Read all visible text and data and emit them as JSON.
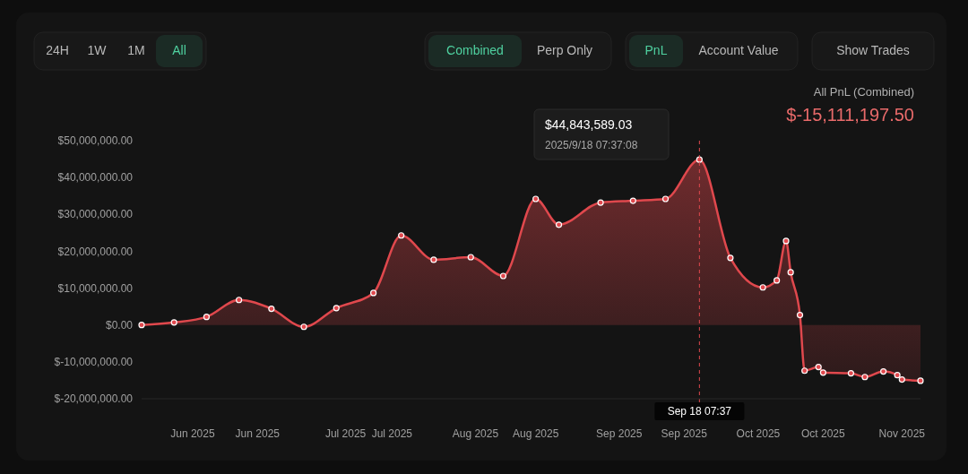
{
  "chart_data": {
    "type": "area",
    "title": "All PnL (Combined)",
    "subtitle": "$-15,111,197.50",
    "x": [
      "2025-05-21",
      "2025-05-28",
      "2025-06-04",
      "2025-06-11",
      "2025-06-18",
      "2025-06-25",
      "2025-07-02",
      "2025-07-10",
      "2025-07-16",
      "2025-07-23",
      "2025-07-31",
      "2025-08-07",
      "2025-08-14",
      "2025-08-19",
      "2025-08-28",
      "2025-09-04",
      "2025-09-11",
      "2025-09-18T07:37",
      "2025-09-25",
      "2025-10-02",
      "2025-10-05",
      "2025-10-07",
      "2025-10-08",
      "2025-10-10",
      "2025-10-11",
      "2025-10-14",
      "2025-10-15",
      "2025-10-21",
      "2025-10-24",
      "2025-10-28",
      "2025-10-31",
      "2025-11-01",
      "2025-11-05"
    ],
    "series": [
      {
        "color": "#e0484d",
        "values": [
          0,
          700000,
          2200000,
          6800000,
          4400000,
          -500000,
          4600000,
          8700000,
          24300000,
          17700000,
          18400000,
          13300000,
          34200000,
          27200000,
          33200000,
          33700000,
          34200000,
          44843589.03,
          18200000,
          10200000,
          12100000,
          22800000,
          14300000,
          2700000,
          -12400000,
          -11400000,
          -12900000,
          -13100000,
          -14100000,
          -12600000,
          -13600000,
          -14800000,
          -15111197.5
        ]
      }
    ],
    "xlim": [
      "2025-05-21",
      "2025-11-05"
    ],
    "xticks": [
      {
        "value": "2025-06-01",
        "label": "Jun 2025"
      },
      {
        "value": "2025-06-15",
        "label": "Jun 2025"
      },
      {
        "value": "2025-07-04",
        "label": "Jul 2025"
      },
      {
        "value": "2025-07-14",
        "label": "Jul 2025"
      },
      {
        "value": "2025-08-01",
        "label": "Aug 2025"
      },
      {
        "value": "2025-08-14",
        "label": "Aug 2025"
      },
      {
        "value": "2025-09-01",
        "label": "Sep 2025"
      },
      {
        "value": "2025-09-15",
        "label": "Sep 2025"
      },
      {
        "value": "2025-10-01",
        "label": "Oct 2025"
      },
      {
        "value": "2025-10-15",
        "label": "Oct 2025"
      },
      {
        "value": "2025-11-01",
        "label": "Nov 2025"
      }
    ],
    "ylim": [
      -20000000,
      50000000
    ],
    "yticks": [
      {
        "value": -20000000,
        "label": "$-20,000,000.00"
      },
      {
        "value": -10000000,
        "label": "$-10,000,000.00"
      },
      {
        "value": 0,
        "label": "$0.00"
      },
      {
        "value": 10000000,
        "label": "$10,000,000.00"
      },
      {
        "value": 20000000,
        "label": "$20,000,000.00"
      },
      {
        "value": 30000000,
        "label": "$30,000,000.00"
      },
      {
        "value": 40000000,
        "label": "$40,000,000.00"
      },
      {
        "value": 50000000,
        "label": "$50,000,000.00"
      }
    ],
    "ref_lines": [
      {
        "axis": "x",
        "value": "2025-09-18T07:37",
        "label": "Sep 18 07:37",
        "color": "#e0484d",
        "line_style": "dashed"
      }
    ],
    "marker": "circle",
    "annotations": [
      "$44,843,589.03",
      "2025/9/18 07:37:08",
      "24H",
      "1W",
      "1M",
      "All",
      "Combined",
      "Perp Only",
      "PnL",
      "Account Value",
      "Show Trades"
    ]
  }
}
